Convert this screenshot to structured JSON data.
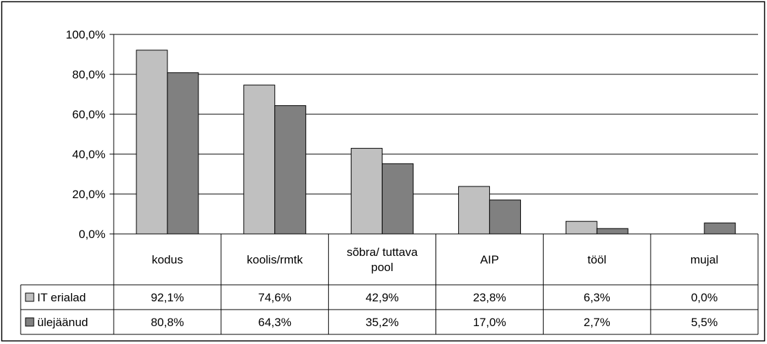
{
  "chart_data": {
    "type": "bar",
    "title": "",
    "xlabel": "",
    "ylabel": "",
    "ylim": [
      0,
      100
    ],
    "yticks": [
      "0,0%",
      "20,0%",
      "40,0%",
      "60,0%",
      "80,0%",
      "100,0%"
    ],
    "grid": true,
    "categories": [
      [
        "kodus"
      ],
      [
        "koolis/rmtk"
      ],
      [
        "sõbra/ tuttava",
        "pool"
      ],
      [
        "AIP"
      ],
      [
        "tööl"
      ],
      [
        "mujal"
      ]
    ],
    "series": [
      {
        "name": "IT erialad",
        "color": "#c0c0c0",
        "values": [
          92.1,
          74.6,
          42.9,
          23.8,
          6.3,
          0.0
        ],
        "labels": [
          "92,1%",
          "74,6%",
          "42,9%",
          "23,8%",
          "6,3%",
          "0,0%"
        ]
      },
      {
        "name": "ülejäänud",
        "color": "#808080",
        "values": [
          80.8,
          64.3,
          35.2,
          17.0,
          2.7,
          5.5
        ],
        "labels": [
          "80,8%",
          "64,3%",
          "35,2%",
          "17,0%",
          "2,7%",
          "5,5%"
        ]
      }
    ],
    "legend": "data-table-left"
  }
}
